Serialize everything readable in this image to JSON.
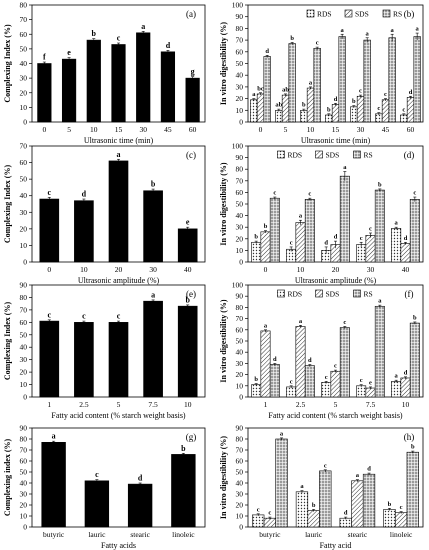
{
  "chart_data": [
    {
      "panel": "(a)",
      "type": "bar",
      "ylabel": "Complexing Index (%)",
      "xlabel": "Ultrasonic time (min)",
      "ylim": [
        0,
        80
      ],
      "yticks": [
        0,
        10,
        20,
        30,
        40,
        50,
        60,
        70,
        80
      ],
      "categories": [
        "0",
        "5",
        "10",
        "15",
        "30",
        "45",
        "60"
      ],
      "values": [
        40,
        43,
        56,
        53,
        61,
        48,
        30
      ],
      "errors": [
        1,
        1,
        1,
        1,
        1,
        1,
        1
      ],
      "letters": [
        "f",
        "e",
        "b",
        "c",
        "a",
        "d",
        "g"
      ],
      "legend": "none"
    },
    {
      "panel": "(b)",
      "type": "bar",
      "ylabel": "In vitro digestibility (%)",
      "xlabel": "Ultrasonic time (min)",
      "ylim": [
        0,
        100
      ],
      "yticks": [
        0,
        10,
        20,
        30,
        40,
        50,
        60,
        70,
        80,
        90,
        100
      ],
      "categories": [
        "0",
        "5",
        "10",
        "15",
        "30",
        "45",
        "60"
      ],
      "legend": "top-right",
      "series": [
        {
          "name": "RDS",
          "pattern": "dots",
          "values": [
            19,
            10,
            10,
            6,
            13,
            7,
            6
          ],
          "errors": [
            1,
            1,
            1,
            1,
            1,
            1,
            1
          ],
          "letters": [
            "a",
            "ab",
            "b",
            "b",
            "b",
            "c",
            "c"
          ]
        },
        {
          "name": "SDS",
          "pattern": "hatch",
          "values": [
            24,
            23,
            29,
            15,
            22,
            19,
            21
          ],
          "errors": [
            1,
            1,
            1,
            1,
            1,
            1,
            1
          ],
          "letters": [
            "bc",
            "ab",
            "a",
            "d",
            "c",
            "c",
            "d"
          ]
        },
        {
          "name": "RS",
          "pattern": "grid",
          "values": [
            56,
            67,
            63,
            73,
            70,
            72,
            73
          ],
          "errors": [
            1,
            1,
            1,
            2,
            2,
            3,
            3
          ],
          "letters": [
            "d",
            "b",
            "c",
            "a",
            "a",
            "a",
            "a"
          ]
        }
      ]
    },
    {
      "panel": "(c)",
      "type": "bar",
      "ylabel": "Complexing Index (%)",
      "xlabel": "Ultrasonic amplitude (%)",
      "ylim": [
        0,
        70
      ],
      "yticks": [
        0,
        10,
        20,
        30,
        40,
        50,
        60,
        70
      ],
      "categories": [
        "0",
        "10",
        "20",
        "30",
        "40"
      ],
      "values": [
        38,
        37,
        61,
        43,
        20
      ],
      "errors": [
        1,
        1,
        1,
        1,
        1
      ],
      "letters": [
        "c",
        "d",
        "a",
        "b",
        "e"
      ],
      "legend": "none"
    },
    {
      "panel": "(d)",
      "type": "bar",
      "ylabel": "In vitro digestibility (%)",
      "xlabel": "Ultrasonic amplitude (%)",
      "ylim": [
        0,
        100
      ],
      "yticks": [
        0,
        10,
        20,
        30,
        40,
        50,
        60,
        70,
        80,
        90,
        100
      ],
      "categories": [
        "0",
        "10",
        "20",
        "30",
        "40"
      ],
      "legend": "top-center",
      "series": [
        {
          "name": "RDS",
          "pattern": "dots",
          "values": [
            17,
            11,
            10,
            15,
            29
          ],
          "errors": [
            1,
            2,
            3,
            2,
            1
          ],
          "letters": [
            "b",
            "c",
            "d",
            "c",
            "a"
          ]
        },
        {
          "name": "SDS",
          "pattern": "hatch",
          "values": [
            26,
            34,
            15,
            23,
            16
          ],
          "errors": [
            1,
            2,
            3,
            2,
            1
          ],
          "letters": [
            "b",
            "a",
            "d",
            "c",
            "d"
          ]
        },
        {
          "name": "RS",
          "pattern": "grid",
          "values": [
            55,
            54,
            74,
            62,
            54
          ],
          "errors": [
            1,
            1,
            4,
            1,
            2
          ],
          "letters": [
            "c",
            "c",
            "a",
            "b",
            "c"
          ]
        }
      ]
    },
    {
      "panel": "(e)",
      "type": "bar",
      "ylabel": "Complexing Index (%)",
      "xlabel": "Fatty acid content (% starch weight basis)",
      "ylim": [
        0,
        90
      ],
      "yticks": [
        0,
        10,
        20,
        30,
        40,
        50,
        60,
        70,
        80,
        90
      ],
      "categories": [
        "1",
        "2.5",
        "5",
        "7.5",
        "10"
      ],
      "values": [
        61,
        60,
        60,
        77,
        73
      ],
      "errors": [
        1,
        1,
        1,
        1,
        1
      ],
      "letters": [
        "c",
        "c",
        "c",
        "a",
        "b"
      ],
      "legend": "none"
    },
    {
      "panel": "(f)",
      "type": "bar",
      "ylabel": "In vitro digestibility (%)",
      "xlabel": "Fatty acid content (% starch weight basis)",
      "ylim": [
        0,
        100
      ],
      "yticks": [
        0,
        10,
        20,
        30,
        40,
        50,
        60,
        70,
        80,
        90,
        100
      ],
      "categories": [
        "1",
        "2.5",
        "5",
        "7.5",
        "10"
      ],
      "legend": "top-center",
      "series": [
        {
          "name": "RDS",
          "pattern": "dots",
          "values": [
            11,
            9,
            13,
            10,
            14
          ],
          "errors": [
            1,
            1,
            1,
            1,
            1
          ],
          "letters": [
            "b",
            "c",
            "c",
            "c",
            "a"
          ]
        },
        {
          "name": "SDS",
          "pattern": "hatch",
          "values": [
            59,
            63,
            23,
            8,
            17
          ],
          "errors": [
            1,
            1,
            1,
            1,
            1
          ],
          "letters": [
            "a",
            "a",
            "c",
            "e",
            "d"
          ]
        },
        {
          "name": "RS",
          "pattern": "grid",
          "values": [
            29,
            28,
            62,
            81,
            66
          ],
          "errors": [
            1,
            1,
            1,
            1,
            1
          ],
          "letters": [
            "d",
            "d",
            "c",
            "a",
            "b"
          ]
        }
      ]
    },
    {
      "panel": "(g)",
      "type": "bar",
      "ylabel": "Complexing index (%)",
      "xlabel": "Fatty acids",
      "ylim": [
        0,
        90
      ],
      "yticks": [
        0,
        10,
        20,
        30,
        40,
        50,
        60,
        70,
        80,
        90
      ],
      "categories": [
        "butyric",
        "lauric",
        "stearic",
        "linoleic"
      ],
      "values": [
        77,
        42,
        39,
        66
      ],
      "errors": [
        1,
        1,
        1,
        1
      ],
      "letters": [
        "a",
        "c",
        "d",
        "b"
      ],
      "legend": "none"
    },
    {
      "panel": "(h)",
      "type": "bar",
      "ylabel": "In vitro digestibility (%)",
      "xlabel": "Fatty acid",
      "ylim": [
        0,
        90
      ],
      "yticks": [
        0,
        10,
        20,
        30,
        40,
        50,
        60,
        70,
        80,
        90
      ],
      "categories": [
        "butyric",
        "lauric",
        "stearic",
        "linoleic"
      ],
      "legend": "none",
      "series": [
        {
          "name": "RDS",
          "pattern": "dots",
          "values": [
            11,
            32,
            8,
            16
          ],
          "errors": [
            1,
            1,
            1,
            1
          ],
          "letters": [
            "c",
            "a",
            "d",
            "b"
          ]
        },
        {
          "name": "SDS",
          "pattern": "hatch",
          "values": [
            8,
            15,
            42,
            13
          ],
          "errors": [
            1,
            1,
            1,
            1
          ],
          "letters": [
            "c",
            "b",
            "a",
            "c"
          ]
        },
        {
          "name": "RS",
          "pattern": "grid",
          "values": [
            80,
            51,
            48,
            68
          ],
          "errors": [
            1,
            1,
            1,
            1
          ],
          "letters": [
            "a",
            "c",
            "d",
            "b"
          ]
        }
      ]
    }
  ]
}
